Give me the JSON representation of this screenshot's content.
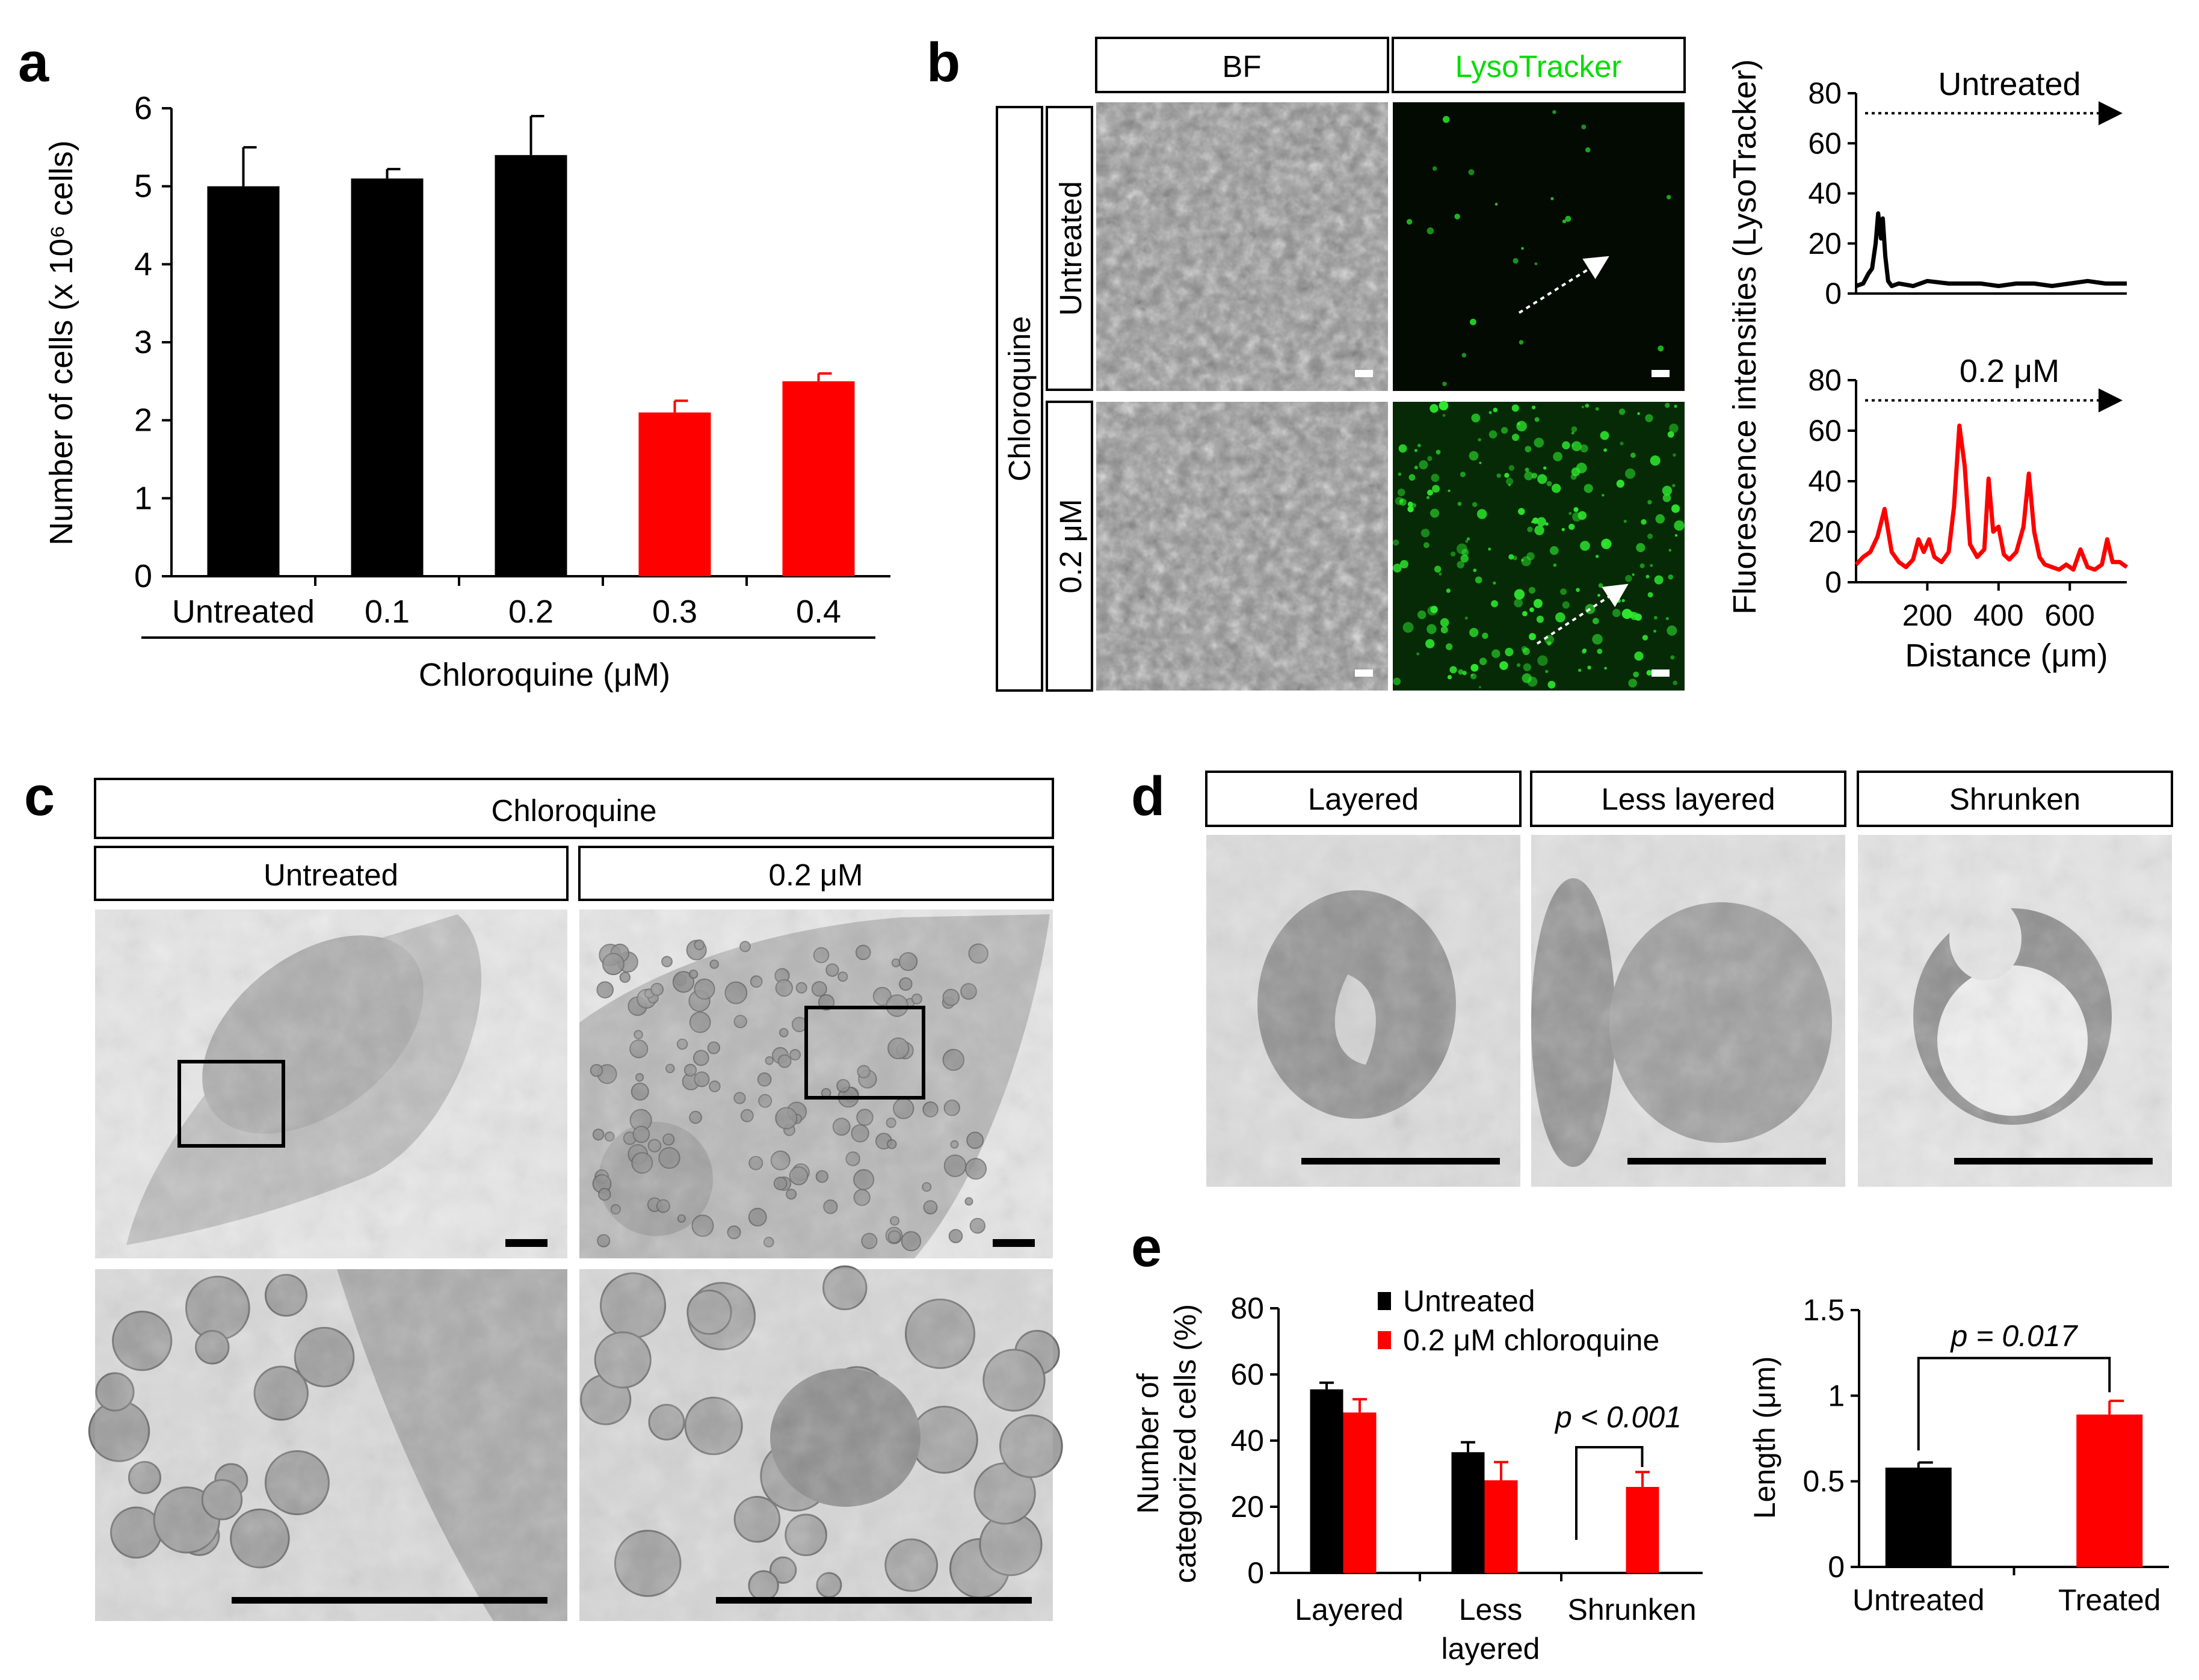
{
  "panel_labels": {
    "a": "a",
    "b": "b",
    "c": "c",
    "d": "d",
    "e": "e"
  },
  "colors": {
    "untreated": "#000000",
    "treated": "#ff0000",
    "lysotracker_green": "#00dd00"
  },
  "panel_b": {
    "header_bf": "BF",
    "header_lyso": "LysoTracker",
    "row_group": "Chloroquine",
    "row_untreated": "Untreated",
    "row_treated": "0.2 μM"
  },
  "panel_c": {
    "header": "Chloroquine",
    "col_untreated": "Untreated",
    "col_treated": "0.2 μM"
  },
  "panel_d": {
    "headers": [
      "Layered",
      "Less layered",
      "Shrunken"
    ]
  },
  "chart_data": [
    {
      "id": "a",
      "type": "bar",
      "categories": [
        "Untreated",
        "0.1",
        "0.2",
        "0.3",
        "0.4"
      ],
      "values": [
        5.0,
        5.1,
        5.4,
        2.1,
        2.5
      ],
      "errors": [
        0.5,
        0.12,
        0.5,
        0.15,
        0.1
      ],
      "bar_colors": [
        "#000000",
        "#000000",
        "#000000",
        "#ff0000",
        "#ff0000"
      ],
      "xlabel": "Chloroquine (μM)",
      "ylabel": "Number of cells (x 10⁶ cells)",
      "ylim": [
        0,
        6
      ],
      "yticks": [
        "0",
        "1",
        "2",
        "3",
        "4",
        "5",
        "6"
      ]
    },
    {
      "id": "b-untreated",
      "type": "line",
      "title": "Untreated",
      "ylim": [
        0,
        80
      ],
      "xlim": [
        0,
        760
      ],
      "yticks": [
        "0",
        "20",
        "40",
        "60",
        "80"
      ],
      "color": "#000000",
      "x": [
        0,
        20,
        35,
        45,
        55,
        62,
        70,
        75,
        82,
        90,
        100,
        120,
        160,
        200,
        260,
        300,
        350,
        400,
        450,
        500,
        550,
        600,
        650,
        700,
        740,
        760
      ],
      "y": [
        3,
        4,
        8,
        10,
        20,
        32,
        22,
        30,
        15,
        5,
        3,
        4,
        3,
        5,
        4,
        4,
        4,
        3,
        4,
        4,
        3,
        4,
        5,
        4,
        4,
        4
      ]
    },
    {
      "id": "b-treated",
      "type": "line",
      "title": "0.2 μM",
      "xlabel": "Distance (μm)",
      "ylabel": "Fluorescence intensities (LysoTracker)",
      "ylim": [
        0,
        80
      ],
      "xlim": [
        0,
        760
      ],
      "yticks": [
        "0",
        "20",
        "40",
        "60",
        "80"
      ],
      "xticks": [
        "200",
        "400",
        "600"
      ],
      "color": "#ff0000",
      "x": [
        0,
        20,
        40,
        60,
        80,
        100,
        120,
        140,
        160,
        175,
        190,
        205,
        220,
        240,
        260,
        275,
        290,
        305,
        320,
        340,
        360,
        372,
        385,
        400,
        415,
        430,
        450,
        470,
        485,
        500,
        515,
        530,
        550,
        570,
        590,
        610,
        630,
        650,
        670,
        690,
        705,
        720,
        740,
        760
      ],
      "y": [
        7,
        10,
        12,
        18,
        29,
        12,
        8,
        6,
        9,
        17,
        12,
        17,
        10,
        8,
        12,
        30,
        62,
        46,
        15,
        10,
        13,
        41,
        20,
        22,
        11,
        9,
        12,
        22,
        43,
        20,
        10,
        7,
        6,
        5,
        7,
        5,
        13,
        6,
        5,
        7,
        17,
        8,
        8,
        6
      ]
    },
    {
      "id": "e-left",
      "type": "bar",
      "categories": [
        "Layered",
        "Less layered",
        "Shrunken"
      ],
      "category_lines": [
        [
          "Layered"
        ],
        [
          "Less",
          "layered"
        ],
        [
          "Shrunken"
        ]
      ],
      "ylabel": "Number of categorized cells (%)",
      "ylabel_lines": [
        "Number of",
        "categorized cells (%)"
      ],
      "ylim": [
        0,
        80
      ],
      "yticks": [
        "0",
        "20",
        "40",
        "60",
        "80"
      ],
      "series": [
        {
          "name": "Untreated",
          "values": [
            55.5,
            36.5,
            0
          ],
          "errors": [
            2,
            3,
            0
          ]
        },
        {
          "name": "0.2 μM chloroquine",
          "values": [
            48.5,
            28,
            26
          ],
          "errors": [
            4,
            5.5,
            4.5
          ]
        }
      ],
      "annotation": "p < 0.001"
    },
    {
      "id": "e-right",
      "type": "bar",
      "categories": [
        "Untreated",
        "Treated"
      ],
      "values": [
        0.58,
        0.89
      ],
      "errors": [
        0.03,
        0.08
      ],
      "bar_colors": [
        "#000000",
        "#ff0000"
      ],
      "ylabel": "Length (μm)",
      "ylim": [
        0,
        1.5
      ],
      "yticks": [
        "0",
        "0.5",
        "1",
        "1.5"
      ],
      "annotation": "p = 0.017"
    }
  ]
}
